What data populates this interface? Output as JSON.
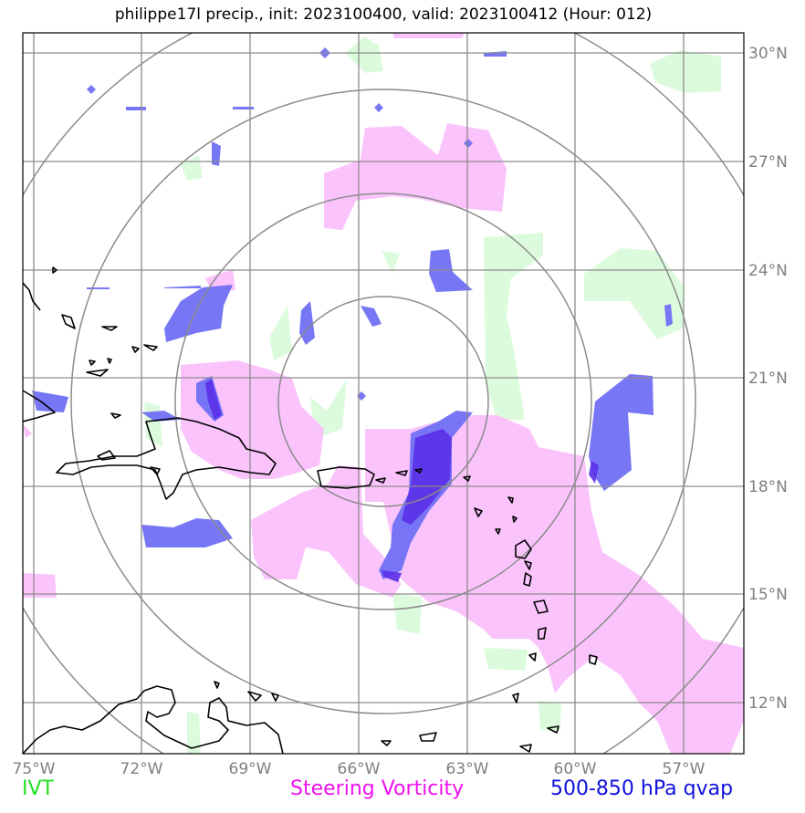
{
  "title": "philippe17l precip., init: 2023100400, valid: 2023100412 (Hour: 012)",
  "legend": [
    {
      "label": "IVT",
      "color": "#22e022"
    },
    {
      "label": "Steering Vorticity",
      "color": "#ee10ee"
    },
    {
      "label": "500-850 hPa qvap",
      "color": "#1010dd"
    }
  ],
  "axes": {
    "x_ticks": [
      "75°W",
      "72°W",
      "69°W",
      "66°W",
      "63°W",
      "60°W",
      "57°W"
    ],
    "y_ticks": [
      "30°N",
      "27°N",
      "24°N",
      "21°N",
      "18°N",
      "15°N",
      "12°N"
    ]
  },
  "map": {
    "range_rings": 4,
    "colors": {
      "ivt_fill": "#d8fbd8",
      "vorticity_fill": "#fbbcfb",
      "qvap_fill": "#7070f4",
      "qvap_dark": "#5a30e8",
      "grid": "#8c8c8c",
      "coast": "#000000"
    }
  }
}
